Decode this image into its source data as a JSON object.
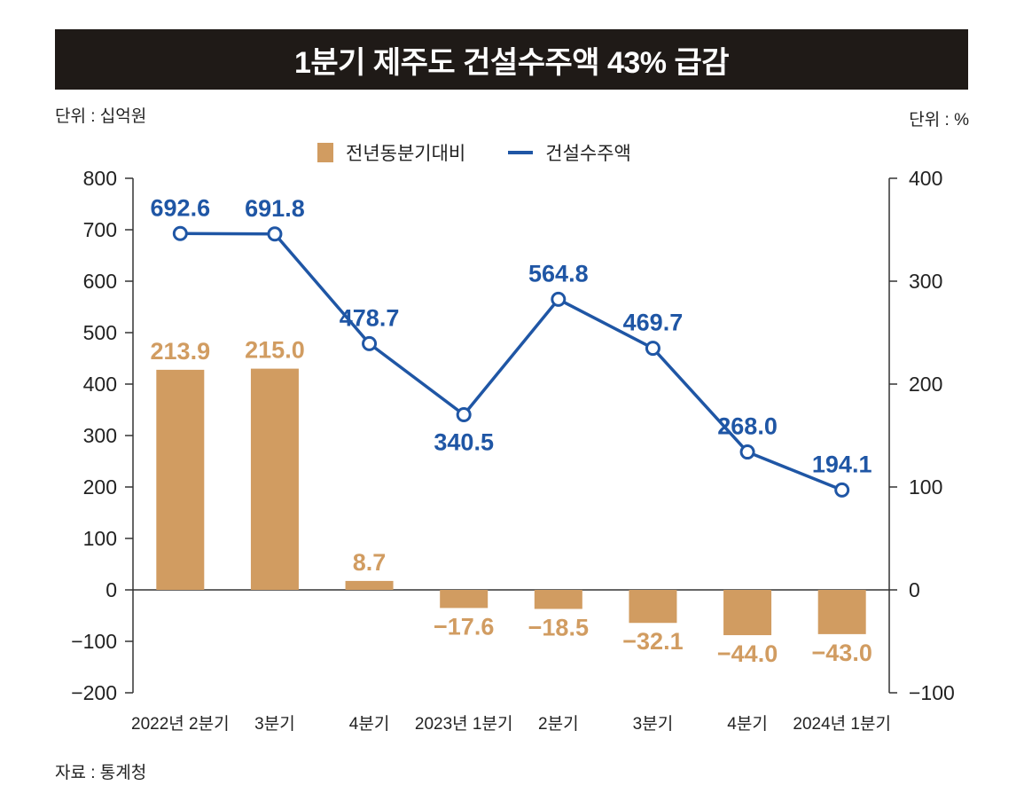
{
  "title": "1분기 제주도 건설수주액 43% 급감",
  "unit_left": "단위 : 십억원",
  "unit_right": "단위 : %",
  "source": "자료 : 통계청",
  "colors": {
    "bar": "#d19c61",
    "line": "#1f56a5",
    "title_bg": "#1f1a17"
  },
  "chart_data": {
    "type": "bar+line",
    "categories": [
      "2022년 2분기",
      "3분기",
      "4분기",
      "2023년 1분기",
      "2분기",
      "3분기",
      "4분기",
      "2024년 1분기"
    ],
    "series": [
      {
        "name": "전년동분기대비",
        "type": "bar",
        "axis": "right",
        "values": [
          213.9,
          215.0,
          8.7,
          -17.6,
          -18.5,
          -32.1,
          -44.0,
          -43.0
        ]
      },
      {
        "name": "건설수주액",
        "type": "line",
        "axis": "left",
        "values": [
          692.6,
          691.8,
          478.7,
          340.5,
          564.8,
          469.7,
          268.0,
          194.1
        ]
      }
    ],
    "value_labels": {
      "bars": [
        "213.9",
        "215.0",
        "8.7",
        "−17.6",
        "−18.5",
        "−32.1",
        "−44.0",
        "−43.0"
      ],
      "line": [
        "692.6",
        "691.8",
        "478.7",
        "340.5",
        "564.8",
        "469.7",
        "268.0",
        "194.1"
      ]
    },
    "y_left": {
      "range": [
        -200,
        800
      ],
      "ticks": [
        800,
        700,
        600,
        500,
        400,
        300,
        200,
        100,
        0,
        -100,
        -200
      ],
      "tick_labels": [
        "800",
        "700",
        "600",
        "500",
        "400",
        "300",
        "200",
        "100",
        "0",
        "−100",
        "−200"
      ]
    },
    "y_right": {
      "range": [
        -100,
        400
      ],
      "ticks": [
        400,
        300,
        200,
        100,
        0,
        -100
      ],
      "tick_labels": [
        "400",
        "300",
        "200",
        "100",
        "0",
        "−100"
      ]
    },
    "legend": [
      "전년동분기대비",
      "건설수주액"
    ]
  }
}
